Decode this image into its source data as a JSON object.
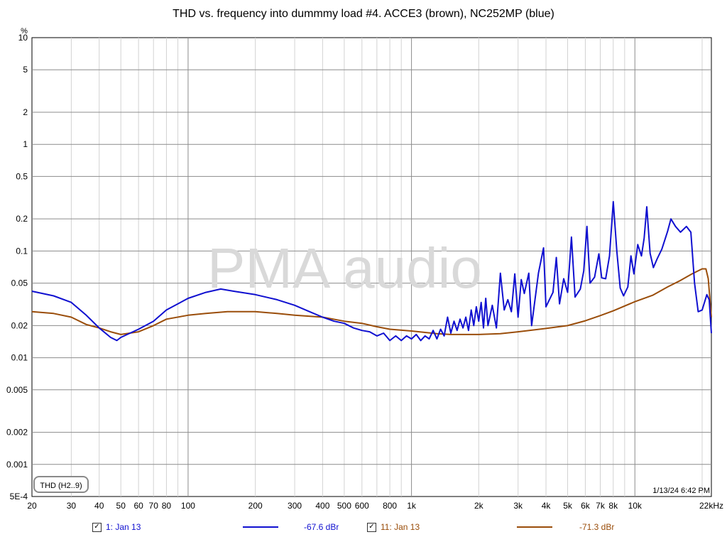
{
  "chart_data": {
    "type": "line",
    "title": "THD vs. frequency into dummmy load #4. ACCE3 (brown), NC252MP (blue)",
    "ylabel": "%",
    "xscale": "log",
    "yscale": "log",
    "xlim": [
      20,
      22000
    ],
    "ylim": [
      0.0005,
      10
    ],
    "grid": true,
    "x_ticks": [
      {
        "value": 20,
        "label": "20"
      },
      {
        "value": 30,
        "label": "30"
      },
      {
        "value": 40,
        "label": "40"
      },
      {
        "value": 50,
        "label": "50"
      },
      {
        "value": 60,
        "label": "60"
      },
      {
        "value": 70,
        "label": "70"
      },
      {
        "value": 80,
        "label": "80"
      },
      {
        "value": 100,
        "label": "100"
      },
      {
        "value": 200,
        "label": "200"
      },
      {
        "value": 300,
        "label": "300"
      },
      {
        "value": 400,
        "label": "400"
      },
      {
        "value": 500,
        "label": "500"
      },
      {
        "value": 600,
        "label": "600"
      },
      {
        "value": 800,
        "label": "800"
      },
      {
        "value": 1000,
        "label": "1k"
      },
      {
        "value": 2000,
        "label": "2k"
      },
      {
        "value": 3000,
        "label": "3k"
      },
      {
        "value": 4000,
        "label": "4k"
      },
      {
        "value": 5000,
        "label": "5k"
      },
      {
        "value": 6000,
        "label": "6k"
      },
      {
        "value": 7000,
        "label": "7k"
      },
      {
        "value": 8000,
        "label": "8k"
      },
      {
        "value": 10000,
        "label": "10k"
      },
      {
        "value": 22000,
        "label": "22kHz"
      }
    ],
    "y_ticks": [
      {
        "value": 10,
        "label": "10"
      },
      {
        "value": 5,
        "label": "5"
      },
      {
        "value": 2,
        "label": "2"
      },
      {
        "value": 1,
        "label": "1"
      },
      {
        "value": 0.5,
        "label": "0.5"
      },
      {
        "value": 0.2,
        "label": "0.2"
      },
      {
        "value": 0.1,
        "label": "0.1"
      },
      {
        "value": 0.05,
        "label": "0.05"
      },
      {
        "value": 0.02,
        "label": "0.02"
      },
      {
        "value": 0.01,
        "label": "0.01"
      },
      {
        "value": 0.005,
        "label": "0.005"
      },
      {
        "value": 0.002,
        "label": "0.002"
      },
      {
        "value": 0.001,
        "label": "0.001"
      },
      {
        "value": 0.0005,
        "label": "5E-4"
      }
    ],
    "series": [
      {
        "name": "1: Jan 13",
        "color": "#1010d0",
        "points": [
          [
            20,
            0.042
          ],
          [
            25,
            0.038
          ],
          [
            30,
            0.033
          ],
          [
            35,
            0.025
          ],
          [
            40,
            0.019
          ],
          [
            45,
            0.0155
          ],
          [
            48,
            0.0145
          ],
          [
            50,
            0.0155
          ],
          [
            55,
            0.017
          ],
          [
            60,
            0.0185
          ],
          [
            70,
            0.022
          ],
          [
            80,
            0.028
          ],
          [
            100,
            0.036
          ],
          [
            120,
            0.041
          ],
          [
            140,
            0.044
          ],
          [
            160,
            0.042
          ],
          [
            200,
            0.039
          ],
          [
            250,
            0.035
          ],
          [
            300,
            0.031
          ],
          [
            350,
            0.027
          ],
          [
            400,
            0.024
          ],
          [
            450,
            0.022
          ],
          [
            500,
            0.021
          ],
          [
            550,
            0.019
          ],
          [
            600,
            0.018
          ],
          [
            650,
            0.0175
          ],
          [
            700,
            0.016
          ],
          [
            750,
            0.017
          ],
          [
            800,
            0.0145
          ],
          [
            850,
            0.016
          ],
          [
            900,
            0.0145
          ],
          [
            950,
            0.016
          ],
          [
            1000,
            0.015
          ],
          [
            1050,
            0.0165
          ],
          [
            1100,
            0.0145
          ],
          [
            1150,
            0.016
          ],
          [
            1200,
            0.015
          ],
          [
            1250,
            0.018
          ],
          [
            1300,
            0.015
          ],
          [
            1350,
            0.0185
          ],
          [
            1400,
            0.016
          ],
          [
            1450,
            0.024
          ],
          [
            1500,
            0.017
          ],
          [
            1550,
            0.022
          ],
          [
            1600,
            0.018
          ],
          [
            1650,
            0.023
          ],
          [
            1700,
            0.019
          ],
          [
            1750,
            0.024
          ],
          [
            1800,
            0.018
          ],
          [
            1850,
            0.028
          ],
          [
            1900,
            0.02
          ],
          [
            1950,
            0.03
          ],
          [
            2000,
            0.022
          ],
          [
            2050,
            0.033
          ],
          [
            2100,
            0.019
          ],
          [
            2150,
            0.036
          ],
          [
            2200,
            0.02
          ],
          [
            2300,
            0.031
          ],
          [
            2400,
            0.019
          ],
          [
            2500,
            0.062
          ],
          [
            2600,
            0.028
          ],
          [
            2700,
            0.035
          ],
          [
            2800,
            0.027
          ],
          [
            2900,
            0.061
          ],
          [
            3000,
            0.024
          ],
          [
            3100,
            0.054
          ],
          [
            3200,
            0.04
          ],
          [
            3350,
            0.062
          ],
          [
            3450,
            0.02
          ],
          [
            3700,
            0.062
          ],
          [
            3900,
            0.107
          ],
          [
            4000,
            0.03
          ],
          [
            4300,
            0.041
          ],
          [
            4450,
            0.087
          ],
          [
            4600,
            0.032
          ],
          [
            4800,
            0.055
          ],
          [
            5000,
            0.041
          ],
          [
            5200,
            0.135
          ],
          [
            5400,
            0.037
          ],
          [
            5700,
            0.044
          ],
          [
            5900,
            0.065
          ],
          [
            6100,
            0.17
          ],
          [
            6300,
            0.05
          ],
          [
            6600,
            0.057
          ],
          [
            6900,
            0.094
          ],
          [
            7100,
            0.056
          ],
          [
            7400,
            0.055
          ],
          [
            7700,
            0.09
          ],
          [
            8000,
            0.29
          ],
          [
            8300,
            0.1
          ],
          [
            8600,
            0.045
          ],
          [
            8900,
            0.038
          ],
          [
            9300,
            0.046
          ],
          [
            9600,
            0.09
          ],
          [
            9900,
            0.061
          ],
          [
            10300,
            0.115
          ],
          [
            10700,
            0.09
          ],
          [
            11000,
            0.132
          ],
          [
            11300,
            0.26
          ],
          [
            11700,
            0.095
          ],
          [
            12100,
            0.07
          ],
          [
            12600,
            0.085
          ],
          [
            13200,
            0.104
          ],
          [
            14000,
            0.152
          ],
          [
            14500,
            0.2
          ],
          [
            15200,
            0.17
          ],
          [
            16000,
            0.15
          ],
          [
            17000,
            0.17
          ],
          [
            17800,
            0.15
          ],
          [
            18500,
            0.05
          ],
          [
            19200,
            0.027
          ],
          [
            20000,
            0.028
          ],
          [
            21000,
            0.039
          ],
          [
            21500,
            0.035
          ],
          [
            22000,
            0.017
          ]
        ]
      },
      {
        "name": "11: Jan 13",
        "color": "#9a4d0a",
        "points": [
          [
            20,
            0.027
          ],
          [
            25,
            0.026
          ],
          [
            30,
            0.024
          ],
          [
            35,
            0.0205
          ],
          [
            40,
            0.019
          ],
          [
            45,
            0.0175
          ],
          [
            50,
            0.0165
          ],
          [
            60,
            0.0175
          ],
          [
            70,
            0.02
          ],
          [
            80,
            0.023
          ],
          [
            100,
            0.025
          ],
          [
            120,
            0.026
          ],
          [
            150,
            0.027
          ],
          [
            200,
            0.027
          ],
          [
            250,
            0.026
          ],
          [
            300,
            0.025
          ],
          [
            400,
            0.024
          ],
          [
            500,
            0.022
          ],
          [
            600,
            0.021
          ],
          [
            700,
            0.0195
          ],
          [
            800,
            0.0185
          ],
          [
            1000,
            0.0178
          ],
          [
            1300,
            0.0168
          ],
          [
            1500,
            0.0165
          ],
          [
            2000,
            0.0165
          ],
          [
            2500,
            0.0168
          ],
          [
            3000,
            0.0175
          ],
          [
            4000,
            0.0188
          ],
          [
            5000,
            0.02
          ],
          [
            6000,
            0.0222
          ],
          [
            7000,
            0.0248
          ],
          [
            8000,
            0.0275
          ],
          [
            10000,
            0.0335
          ],
          [
            12000,
            0.0385
          ],
          [
            14000,
            0.046
          ],
          [
            16000,
            0.053
          ],
          [
            18000,
            0.061
          ],
          [
            20000,
            0.068
          ],
          [
            20800,
            0.068
          ],
          [
            21300,
            0.055
          ],
          [
            22000,
            0.024
          ]
        ]
      }
    ],
    "legend": {
      "entries": [
        {
          "label": "1: Jan 13",
          "value": "-67.6 dBr",
          "color": "#1010d0",
          "checked": true
        },
        {
          "label": "11: Jan 13",
          "value": "-71.3 dBr",
          "color": "#9a4d0a",
          "checked": true
        }
      ]
    },
    "annotations": {
      "thd_box": "THD (H2..9)",
      "timestamp": "1/13/24 6:42 PM",
      "watermark": "PMA audio"
    }
  }
}
